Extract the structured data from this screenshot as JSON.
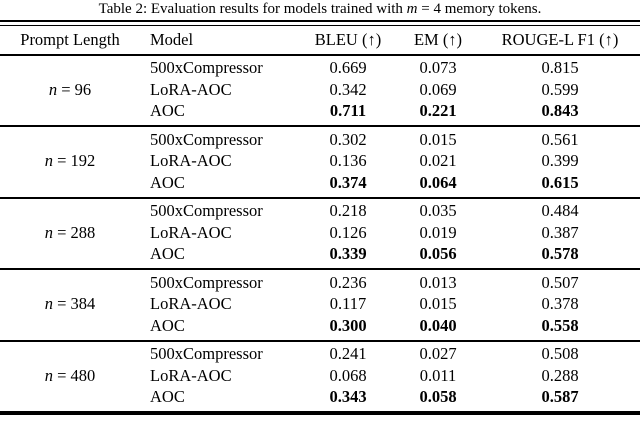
{
  "colors": {
    "text": "#000000",
    "background": "#ffffff",
    "rule": "#000000"
  },
  "caption": {
    "prefix": "Table 2: Evaluation results for models trained with ",
    "math_var": "m",
    "suffix": " = 4 memory tokens."
  },
  "table": {
    "headers": {
      "prompt_length": "Prompt Length",
      "model": "Model",
      "bleu": "BLEU (↑)",
      "em": "EM (↑)",
      "rouge": "ROUGE-L F1 (↑)"
    },
    "groups": [
      {
        "prompt_var": "n",
        "prompt_eq": "=",
        "prompt_value": "96",
        "rows": [
          {
            "model": "500xCompressor",
            "bleu": "0.669",
            "em": "0.073",
            "rouge": "0.815",
            "bold": false
          },
          {
            "model": "LoRA-AOC",
            "bleu": "0.342",
            "em": "0.069",
            "rouge": "0.599",
            "bold": false
          },
          {
            "model": "AOC",
            "bleu": "0.711",
            "em": "0.221",
            "rouge": "0.843",
            "bold": true
          }
        ]
      },
      {
        "prompt_var": "n",
        "prompt_eq": "=",
        "prompt_value": "192",
        "rows": [
          {
            "model": "500xCompressor",
            "bleu": "0.302",
            "em": "0.015",
            "rouge": "0.561",
            "bold": false
          },
          {
            "model": "LoRA-AOC",
            "bleu": "0.136",
            "em": "0.021",
            "rouge": "0.399",
            "bold": false
          },
          {
            "model": "AOC",
            "bleu": "0.374",
            "em": "0.064",
            "rouge": "0.615",
            "bold": true
          }
        ]
      },
      {
        "prompt_var": "n",
        "prompt_eq": "=",
        "prompt_value": "288",
        "rows": [
          {
            "model": "500xCompressor",
            "bleu": "0.218",
            "em": "0.035",
            "rouge": "0.484",
            "bold": false
          },
          {
            "model": "LoRA-AOC",
            "bleu": "0.126",
            "em": "0.019",
            "rouge": "0.387",
            "bold": false
          },
          {
            "model": "AOC",
            "bleu": "0.339",
            "em": "0.056",
            "rouge": "0.578",
            "bold": true
          }
        ]
      },
      {
        "prompt_var": "n",
        "prompt_eq": "=",
        "prompt_value": "384",
        "rows": [
          {
            "model": "500xCompressor",
            "bleu": "0.236",
            "em": "0.013",
            "rouge": "0.507",
            "bold": false
          },
          {
            "model": "LoRA-AOC",
            "bleu": "0.117",
            "em": "0.015",
            "rouge": "0.378",
            "bold": false
          },
          {
            "model": "AOC",
            "bleu": "0.300",
            "em": "0.040",
            "rouge": "0.558",
            "bold": true
          }
        ]
      },
      {
        "prompt_var": "n",
        "prompt_eq": "=",
        "prompt_value": "480",
        "rows": [
          {
            "model": "500xCompressor",
            "bleu": "0.241",
            "em": "0.027",
            "rouge": "0.508",
            "bold": false
          },
          {
            "model": "LoRA-AOC",
            "bleu": "0.068",
            "em": "0.011",
            "rouge": "0.288",
            "bold": false
          },
          {
            "model": "AOC",
            "bleu": "0.343",
            "em": "0.058",
            "rouge": "0.587",
            "bold": true
          }
        ]
      }
    ]
  }
}
